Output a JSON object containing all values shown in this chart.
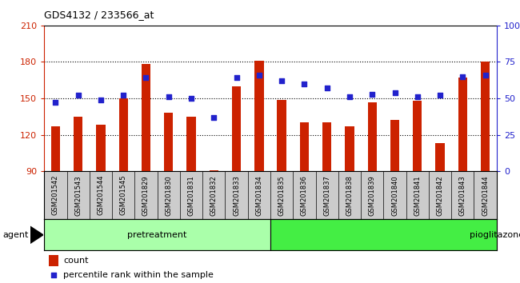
{
  "title": "GDS4132 / 233566_at",
  "samples": [
    "GSM201542",
    "GSM201543",
    "GSM201544",
    "GSM201545",
    "GSM201829",
    "GSM201830",
    "GSM201831",
    "GSM201832",
    "GSM201833",
    "GSM201834",
    "GSM201835",
    "GSM201836",
    "GSM201837",
    "GSM201838",
    "GSM201839",
    "GSM201840",
    "GSM201841",
    "GSM201842",
    "GSM201843",
    "GSM201844"
  ],
  "counts": [
    127,
    135,
    128,
    150,
    178,
    138,
    135,
    91,
    160,
    181,
    149,
    130,
    130,
    127,
    147,
    132,
    148,
    113,
    167,
    180
  ],
  "percentile_ranks": [
    47,
    52,
    49,
    52,
    64,
    51,
    50,
    37,
    64,
    66,
    62,
    60,
    57,
    51,
    53,
    54,
    51,
    52,
    65,
    66
  ],
  "pretreatment_count": 10,
  "pioglitazone_count": 10,
  "ylim_left": [
    90,
    210
  ],
  "yticks_left": [
    90,
    120,
    150,
    180,
    210
  ],
  "ylim_right": [
    0,
    100
  ],
  "yticks_right": [
    0,
    25,
    50,
    75,
    100
  ],
  "bar_color": "#cc2200",
  "dot_color": "#2222cc",
  "bar_baseline": 90,
  "pretreatment_color": "#aaffaa",
  "pioglitazone_color": "#44ee44",
  "agent_label": "agent",
  "pretreatment_label": "pretreatment",
  "pioglitazone_label": "pioglitazone",
  "legend_count_label": "count",
  "legend_percentile_label": "percentile rank within the sample",
  "grid_color": "#888888",
  "tick_bg_color": "#cccccc",
  "plot_bg_color": "#ffffff"
}
